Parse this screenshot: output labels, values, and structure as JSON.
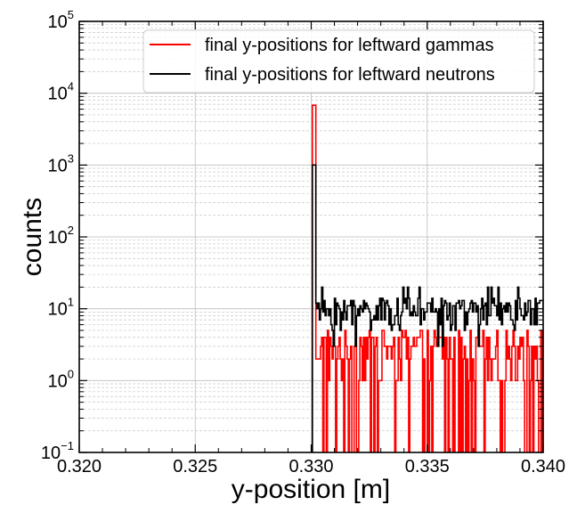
{
  "chart_data": {
    "type": "line",
    "title": "",
    "xlabel": "y-position [m]",
    "ylabel": "counts",
    "xlim": [
      0.32,
      0.34
    ],
    "ylim": [
      0.1,
      100000
    ],
    "yscale": "log",
    "grid": "on (major and minor)",
    "legend_placement": "top-right",
    "x_ticks": [
      "0.320",
      "0.325",
      "0.330",
      "0.335",
      "0.340"
    ],
    "y_ticks": [
      {
        "base": "10",
        "exp": "−1"
      },
      {
        "base": "10",
        "exp": "0"
      },
      {
        "base": "10",
        "exp": "1"
      },
      {
        "base": "10",
        "exp": "2"
      },
      {
        "base": "10",
        "exp": "3"
      },
      {
        "base": "10",
        "exp": "4"
      },
      {
        "base": "10",
        "exp": "5"
      }
    ],
    "series": [
      {
        "name": "final y-positions for leftward gammas",
        "color": "#ff0000",
        "peak": {
          "x": 0.3302,
          "y": 6800
        },
        "x_start": 0.33005,
        "x_end": 0.34,
        "level_min": 1,
        "level_max": 5,
        "description": "histogram fluctuating between 0 and about 5 counts after the peak"
      },
      {
        "name": "final y-positions for leftward neutrons",
        "color": "#000000",
        "peak": {
          "x": 0.3302,
          "y": 1000
        },
        "x_start": 0.33005,
        "x_end": 0.34,
        "level_min": 3,
        "level_max": 20,
        "description": "histogram fluctuating around 5 to 15 counts after the peak"
      }
    ]
  }
}
